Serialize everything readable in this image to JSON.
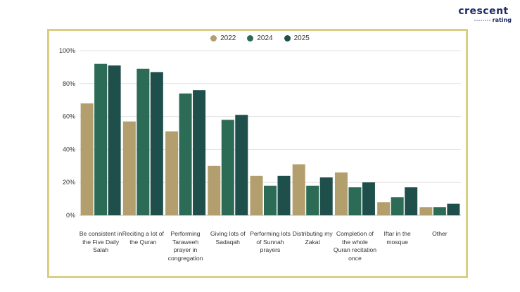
{
  "brand": {
    "name": "crescent",
    "sub": "rating"
  },
  "chart_data": {
    "type": "bar",
    "categories": [
      "Be consistent in the Five Daily Salah",
      "Reciting a lot of the Quran",
      "Performing Taraweeh prayer in congregation",
      "Giving lots of Sadaqah",
      "Performing lots of Sunnah prayers",
      "Distributing my Zakat",
      "Completion of the whole Quran recitation once",
      "Iftar in the mosque",
      "Other"
    ],
    "series": [
      {
        "name": "2022",
        "color": "#b39f6e",
        "values": [
          68,
          57,
          51,
          30,
          24,
          31,
          26,
          8,
          5
        ]
      },
      {
        "name": "2024",
        "color": "#2c6b55",
        "values": [
          92,
          89,
          74,
          58,
          18,
          18,
          17,
          11,
          5
        ]
      },
      {
        "name": "2025",
        "color": "#1f4f4b",
        "values": [
          91,
          87,
          76,
          61,
          24,
          23,
          20,
          17,
          7
        ]
      }
    ],
    "yticks": [
      "0%",
      "20%",
      "40%",
      "60%",
      "80%",
      "100%"
    ],
    "ylim": [
      0,
      100
    ],
    "grid": true,
    "legend_position": "top-center"
  }
}
